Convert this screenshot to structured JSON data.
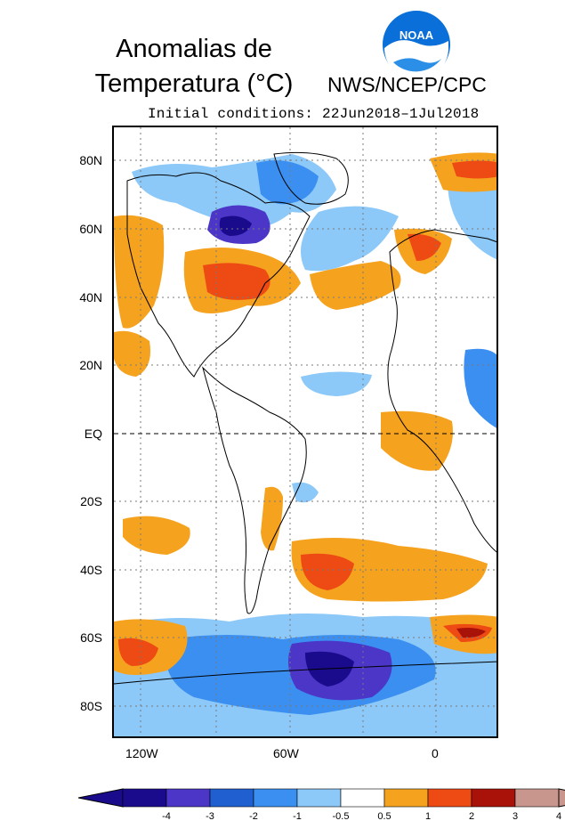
{
  "title_line1": "Anomalias de",
  "title_line2": "Temperatura (°C)",
  "agency": "NWS/NCEP/CPC",
  "logo_text": "NOAA",
  "subtitle": "Initial conditions: 22Jun2018–1Jul2018",
  "lat_labels": [
    "80N",
    "60N",
    "40N",
    "20N",
    "EQ",
    "20S",
    "40S",
    "60S",
    "80S"
  ],
  "lon_labels": [
    "120W",
    "60W",
    "0"
  ],
  "colorbar": {
    "labels": [
      "-4",
      "-3",
      "-2",
      "-1",
      "-0.5",
      "0.5",
      "1",
      "2",
      "3",
      "4"
    ],
    "colors": [
      "#1a0a8c",
      "#4b36c8",
      "#1f5fd0",
      "#3a8ff0",
      "#8cc8f8",
      "#ffffff",
      "#f5a21f",
      "#ee4a14",
      "#a81208",
      "#c8968c"
    ]
  }
}
